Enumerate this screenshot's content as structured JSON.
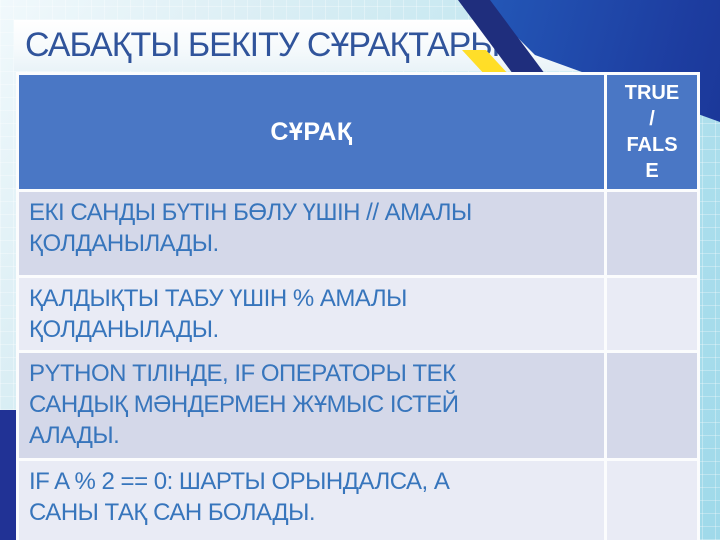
{
  "slide": {
    "title": "САБАҚТЫ БЕКІТУ СҰРАҚТАРЫ",
    "table": {
      "header": {
        "question": "СҰРАҚ",
        "answer": "TRUE / FALSE"
      },
      "rows": [
        {
          "question": "ЕКІ САНДЫ БҮТІН БӨЛУ ҮШІН // АМАЛЫ ҚОЛДАНЫЛАДЫ.",
          "answer": ""
        },
        {
          "question": "ҚАЛДЫҚТЫ ТАБУ ҮШІН % АМАЛЫ ҚОЛДАНЫЛАДЫ.",
          "answer": ""
        },
        {
          "question": "PYTHON ТІЛІНДЕ, IF ОПЕРАТОРЫ ТЕК САНДЫҚ МӘНДЕРМЕН ЖҰМЫС ІСТЕЙ АЛАДЫ.",
          "answer": ""
        },
        {
          "question": "IF A % 2 == 0: ШАРТЫ ОРЫНДАЛСА, А САНЫ ТАҚ САН БОЛАДЫ.",
          "answer": ""
        }
      ]
    },
    "colors": {
      "header_bg": "#4A77C5",
      "row_odd_bg": "#D4D8E9",
      "row_even_bg": "#E9EBF5",
      "title_text": "#30549B",
      "row_text": "#3775BC",
      "accent_yellow": "#FFD800",
      "corner_navy": "#1F2E7D",
      "corner_blue_start": "#1E90DC",
      "corner_blue_end": "#172F8E",
      "left_bar_navy": "#213295",
      "background_cyan": "#ABDEEC"
    }
  }
}
